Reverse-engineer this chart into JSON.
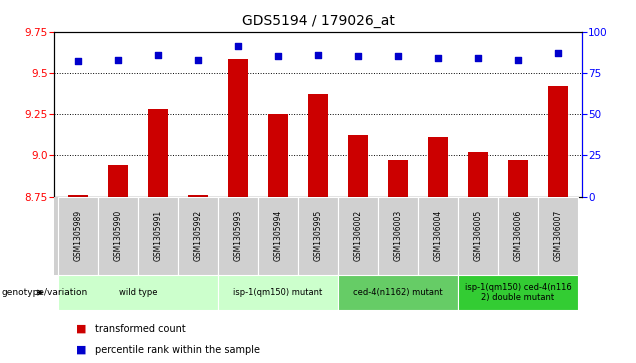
{
  "title": "GDS5194 / 179026_at",
  "samples": [
    "GSM1305989",
    "GSM1305990",
    "GSM1305991",
    "GSM1305992",
    "GSM1305993",
    "GSM1305994",
    "GSM1305995",
    "GSM1306002",
    "GSM1306003",
    "GSM1306004",
    "GSM1306005",
    "GSM1306006",
    "GSM1306007"
  ],
  "transformed_count": [
    8.762,
    8.942,
    9.282,
    8.762,
    9.582,
    9.252,
    9.372,
    9.122,
    8.972,
    9.112,
    9.022,
    8.972,
    9.422
  ],
  "percentile_rank": [
    82,
    83,
    86,
    83,
    91,
    85,
    86,
    85,
    85,
    84,
    84,
    83,
    87
  ],
  "ylim_left": [
    8.75,
    9.75
  ],
  "ylim_right": [
    0,
    100
  ],
  "yticks_left": [
    8.75,
    9.0,
    9.25,
    9.5,
    9.75
  ],
  "yticks_right": [
    0,
    25,
    50,
    75,
    100
  ],
  "bar_color": "#cc0000",
  "dot_color": "#0000cc",
  "group_labels": [
    "wild type",
    "isp-1(qm150) mutant",
    "ced-4(n1162) mutant",
    "isp-1(qm150) ced-4(n116\n2) double mutant"
  ],
  "group_ranges": [
    [
      0,
      3
    ],
    [
      4,
      6
    ],
    [
      7,
      9
    ],
    [
      10,
      12
    ]
  ],
  "group_colors": [
    "#ccffcc",
    "#ccffcc",
    "#66cc66",
    "#33cc33"
  ],
  "genotype_label": "genotype/variation",
  "legend_bar_label": "transformed count",
  "legend_dot_label": "percentile rank within the sample",
  "title_fontsize": 10,
  "tick_fontsize": 7.5,
  "sample_fontsize": 5.5,
  "group_fontsize": 6,
  "legend_fontsize": 7
}
